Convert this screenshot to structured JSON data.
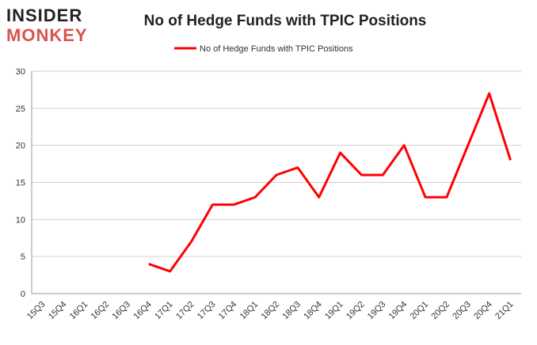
{
  "logo": {
    "line1": "INSIDER",
    "line2": "MONKEY"
  },
  "chart_data": {
    "type": "line",
    "title": "No of Hedge Funds with TPIC Positions",
    "categories": [
      "15Q3",
      "15Q4",
      "16Q1",
      "16Q2",
      "16Q3",
      "16Q4",
      "17Q1",
      "17Q2",
      "17Q3",
      "17Q4",
      "18Q1",
      "18Q2",
      "18Q3",
      "18Q4",
      "19Q1",
      "19Q2",
      "19Q3",
      "19Q4",
      "20Q1",
      "20Q2",
      "20Q3",
      "20Q4",
      "21Q1"
    ],
    "series": [
      {
        "name": "No of Hedge Funds with TPIC Positions",
        "color": "#ff0000",
        "values": [
          null,
          null,
          null,
          null,
          null,
          4,
          3,
          7,
          12,
          12,
          13,
          16,
          17,
          13,
          19,
          16,
          16,
          20,
          13,
          13,
          20,
          27,
          18
        ]
      }
    ],
    "ylim": [
      0,
      30
    ],
    "yticks": [
      0,
      5,
      10,
      15,
      20,
      25,
      30
    ],
    "grid": true,
    "legend": "top"
  }
}
